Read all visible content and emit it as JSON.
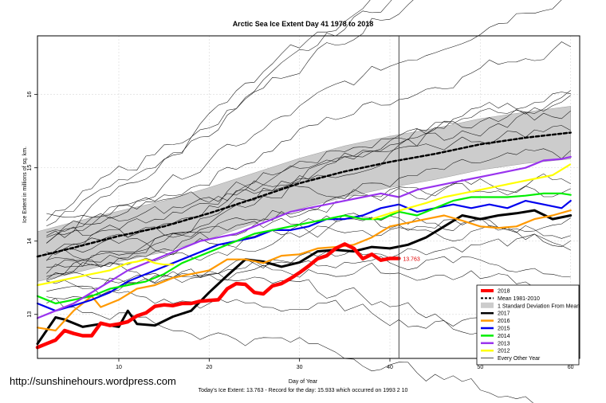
{
  "chart_data": {
    "type": "line",
    "title": "Arctic Sea Ice Extent Day 41 1978 to 2018",
    "xlabel": "Day of Year",
    "ylabel": "Ice Extent in millions of sq. km.",
    "xlim": [
      1,
      61
    ],
    "ylim": [
      12.4,
      16.8
    ],
    "x_ticks": [
      10,
      20,
      30,
      40,
      50,
      60
    ],
    "y_ticks": [
      13,
      14,
      15,
      16
    ],
    "grid": true,
    "current_day": 41,
    "legend_position": "bottom-right",
    "end_label": "13.763",
    "footer_text": "Today's Ice Extent: 13.763  - Record for the day: 15.933 which occurred on 1993 2 10",
    "site_text": "http://sunshinehours.wordpress.com",
    "band": {
      "name": "1 Standard Deviation From Mean",
      "color": "#cccccc",
      "x": [
        1,
        5,
        10,
        15,
        20,
        25,
        30,
        35,
        40,
        45,
        50,
        55,
        60
      ],
      "lower": [
        13.45,
        13.56,
        13.72,
        13.85,
        14.03,
        14.24,
        14.44,
        14.6,
        14.73,
        14.84,
        14.97,
        15.06,
        15.12
      ],
      "upper": [
        14.13,
        14.26,
        14.41,
        14.55,
        14.73,
        14.93,
        15.13,
        15.3,
        15.43,
        15.54,
        15.67,
        15.76,
        15.84
      ]
    },
    "series": [
      {
        "name": "2018",
        "color": "#ff0000",
        "width": 4.5,
        "x": [
          1,
          2,
          3,
          4,
          5,
          6,
          7,
          8,
          9,
          10,
          11,
          12,
          13,
          14,
          15,
          16,
          17,
          18,
          19,
          20,
          21,
          22,
          23,
          24,
          25,
          26,
          27,
          28,
          29,
          30,
          31,
          32,
          33,
          34,
          35,
          36,
          37,
          38,
          39,
          40,
          41
        ],
        "values": [
          12.55,
          12.6,
          12.65,
          12.78,
          12.74,
          12.71,
          12.71,
          12.88,
          12.85,
          12.87,
          12.9,
          12.98,
          13.02,
          13.11,
          13.13,
          13.12,
          13.15,
          13.15,
          13.18,
          13.19,
          13.2,
          13.35,
          13.42,
          13.41,
          13.3,
          13.28,
          13.39,
          13.42,
          13.49,
          13.57,
          13.66,
          13.76,
          13.8,
          13.9,
          13.96,
          13.9,
          13.76,
          13.82,
          13.74,
          13.763,
          13.763
        ]
      },
      {
        "name": "Mean 1981-2010",
        "color": "#000000",
        "width": 2.5,
        "dash": "4,3",
        "x": [
          1,
          5,
          10,
          15,
          20,
          25,
          30,
          35,
          40,
          45,
          50,
          55,
          60
        ],
        "values": [
          13.79,
          13.91,
          14.07,
          14.2,
          14.38,
          14.58,
          14.79,
          14.95,
          15.08,
          15.19,
          15.32,
          15.41,
          15.48
        ]
      },
      {
        "name": "2017",
        "color": "#000000",
        "width": 3,
        "x": [
          1,
          3,
          4,
          6,
          8,
          10,
          11,
          12,
          14,
          16,
          18,
          20,
          22,
          24,
          26,
          28,
          30,
          32,
          34,
          36,
          38,
          40,
          42,
          44,
          46,
          48,
          50,
          52,
          54,
          56,
          58,
          60
        ],
        "values": [
          12.6,
          12.96,
          12.93,
          12.83,
          12.87,
          12.83,
          13.05,
          12.87,
          12.85,
          12.97,
          13.05,
          13.3,
          13.53,
          13.75,
          13.72,
          13.65,
          13.71,
          13.86,
          13.88,
          13.86,
          13.92,
          13.9,
          13.95,
          14.05,
          14.2,
          14.35,
          14.3,
          14.35,
          14.38,
          14.42,
          14.3,
          14.35
        ]
      },
      {
        "name": "2016",
        "color": "#ff9900",
        "width": 2.2,
        "x": [
          1,
          3,
          5,
          7,
          8,
          10,
          12,
          14,
          16,
          18,
          20,
          22,
          24,
          26,
          28,
          30,
          32,
          34,
          36,
          38,
          40,
          42,
          44,
          46,
          48,
          50,
          52,
          54,
          56,
          58,
          60
        ],
        "values": [
          12.82,
          12.78,
          13.05,
          13.25,
          13.1,
          13.2,
          13.35,
          13.4,
          13.5,
          13.55,
          13.6,
          13.75,
          13.75,
          13.7,
          13.8,
          13.82,
          13.9,
          13.92,
          13.95,
          14.05,
          14.2,
          14.25,
          14.3,
          14.35,
          14.28,
          14.2,
          14.18,
          14.2,
          14.3,
          14.35,
          14.42
        ]
      },
      {
        "name": "2015",
        "color": "#0000ee",
        "width": 2.2,
        "x": [
          1,
          3,
          5,
          7,
          9,
          11,
          13,
          15,
          17,
          19,
          21,
          23,
          25,
          27,
          29,
          31,
          33,
          35,
          37,
          39,
          41,
          43,
          45,
          47,
          49,
          51,
          53,
          55,
          57,
          59,
          60
        ],
        "values": [
          13.15,
          13.05,
          13.12,
          13.2,
          13.3,
          13.45,
          13.55,
          13.65,
          13.75,
          13.85,
          13.95,
          14.0,
          14.05,
          14.15,
          14.15,
          14.2,
          14.3,
          14.3,
          14.35,
          14.45,
          14.5,
          14.4,
          14.45,
          14.5,
          14.45,
          14.5,
          14.45,
          14.55,
          14.5,
          14.45,
          14.55
        ]
      },
      {
        "name": "2014",
        "color": "#00ee00",
        "width": 2.2,
        "x": [
          1,
          3,
          5,
          7,
          9,
          11,
          13,
          15,
          17,
          19,
          21,
          23,
          25,
          27,
          29,
          31,
          33,
          35,
          37,
          39,
          41,
          43,
          45,
          47,
          49,
          51,
          53,
          55,
          57,
          59,
          60
        ],
        "values": [
          13.25,
          13.15,
          13.2,
          13.25,
          13.35,
          13.4,
          13.45,
          13.55,
          13.7,
          13.8,
          13.9,
          14.0,
          14.1,
          14.15,
          14.2,
          14.25,
          14.3,
          14.35,
          14.3,
          14.3,
          14.4,
          14.35,
          14.45,
          14.55,
          14.6,
          14.6,
          14.6,
          14.62,
          14.65,
          14.65,
          14.63
        ]
      },
      {
        "name": "2013",
        "color": "#9933ee",
        "width": 2.2,
        "x": [
          1,
          3,
          5,
          7,
          9,
          11,
          13,
          15,
          17,
          19,
          21,
          23,
          25,
          27,
          29,
          31,
          33,
          35,
          37,
          39,
          41,
          43,
          45,
          47,
          49,
          51,
          53,
          55,
          57,
          59,
          60
        ],
        "values": [
          12.95,
          13.05,
          13.15,
          13.3,
          13.45,
          13.6,
          13.7,
          13.8,
          13.9,
          14.0,
          14.05,
          14.1,
          14.2,
          14.3,
          14.4,
          14.45,
          14.5,
          14.55,
          14.6,
          14.65,
          14.6,
          14.7,
          14.75,
          14.8,
          14.85,
          14.9,
          14.95,
          15.0,
          15.1,
          15.12,
          15.15
        ]
      },
      {
        "name": "2012",
        "color": "#ffff00",
        "width": 2.2,
        "x": [
          1,
          3,
          5,
          7,
          9,
          11,
          12,
          13,
          14,
          15,
          16
        ],
        "values": [
          13.4,
          13.45,
          13.5,
          13.55,
          13.6,
          13.7,
          13.72,
          13.75,
          13.7,
          13.68,
          13.68
        ],
        "x2": [
          38,
          40,
          42,
          44,
          46,
          48,
          50,
          52,
          54,
          56,
          58,
          60
        ],
        "values2": [
          14.3,
          14.38,
          14.45,
          14.52,
          14.6,
          14.65,
          14.7,
          14.75,
          14.8,
          14.85,
          14.9,
          15.05
        ]
      }
    ],
    "legend": [
      {
        "label": "2018",
        "color": "#ff0000",
        "kind": "line",
        "width": 4
      },
      {
        "label": "Mean 1981-2010",
        "color": "#000000",
        "kind": "dash",
        "width": 2
      },
      {
        "label": "1 Standard Deviation From Mean",
        "color": "#cccccc",
        "kind": "box",
        "width": 6
      },
      {
        "label": "2017",
        "color": "#000000",
        "kind": "line",
        "width": 2.5
      },
      {
        "label": "2016",
        "color": "#ff9900",
        "kind": "line",
        "width": 2.5
      },
      {
        "label": "2015",
        "color": "#0000ee",
        "kind": "line",
        "width": 2.5
      },
      {
        "label": "2014",
        "color": "#00ee00",
        "kind": "line",
        "width": 2.5
      },
      {
        "label": "2013",
        "color": "#9933ee",
        "kind": "line",
        "width": 2.5
      },
      {
        "label": "2012",
        "color": "#ffff00",
        "kind": "line",
        "width": 2.5
      },
      {
        "label": "Every Other Year",
        "color": "#000000",
        "kind": "line",
        "width": 0.7
      }
    ]
  }
}
